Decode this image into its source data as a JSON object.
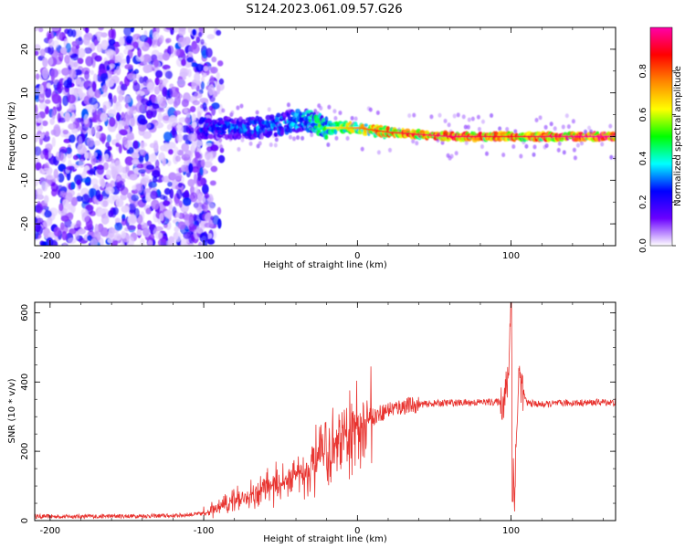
{
  "figure_title": "S124.2023.061.09.57.G26",
  "colors": {
    "axis": "#000000",
    "snr_line": "#e8332f",
    "background": "#ffffff"
  },
  "chart_data": [
    {
      "type": "heatmap",
      "title": "S124.2023.061.09.57.G26",
      "xlabel": "Height of straight line (km)",
      "ylabel": "Frequency (Hz)",
      "xlim": [
        -210,
        168
      ],
      "ylim": [
        -25,
        25
      ],
      "x_ticks": [
        -200,
        -100,
        0,
        100
      ],
      "y_ticks": [
        -20,
        -10,
        0,
        10,
        20
      ],
      "colorbar": {
        "label": "Normalized spectral amplitude",
        "range": [
          0,
          1
        ],
        "ticks": [
          "0.0",
          "0.2",
          "0.4",
          "0.6",
          "0.8"
        ],
        "colormap": [
          "#ffffff",
          "#6a00ff",
          "#0000ff",
          "#00ffff",
          "#00ff00",
          "#ffff00",
          "#ff8800",
          "#ff0000",
          "#ff00aa"
        ]
      },
      "description_points": [
        {
          "x": -150,
          "y": 0,
          "value": 0.15
        },
        {
          "x": -100,
          "y": 2,
          "value": 0.3
        },
        {
          "x": -60,
          "y": 2,
          "value": 0.35
        },
        {
          "x": -35,
          "y": 4,
          "value": 0.45
        },
        {
          "x": -20,
          "y": 2,
          "value": 0.55
        },
        {
          "x": 0,
          "y": 2,
          "value": 0.7
        },
        {
          "x": 20,
          "y": 1,
          "value": 0.85
        },
        {
          "x": 60,
          "y": 0,
          "value": 0.9
        },
        {
          "x": 100,
          "y": 0,
          "value": 0.85
        },
        {
          "x": 160,
          "y": 0,
          "value": 0.95
        }
      ]
    },
    {
      "type": "line",
      "title": "",
      "xlabel": "Height of straight line (km)",
      "ylabel": "SNR (10 * v/v)",
      "xlim": [
        -210,
        168
      ],
      "ylim": [
        0,
        630
      ],
      "x_ticks": [
        -200,
        -100,
        0,
        100
      ],
      "y_ticks": [
        0,
        200,
        400,
        600
      ],
      "x": [
        -210,
        -180,
        -150,
        -120,
        -100,
        -90,
        -80,
        -70,
        -60,
        -50,
        -40,
        -30,
        -20,
        -10,
        0,
        10,
        20,
        30,
        40,
        50,
        60,
        70,
        80,
        90,
        95,
        98,
        100,
        102,
        105,
        110,
        120,
        130,
        140,
        150,
        160,
        168
      ],
      "y": [
        12,
        12,
        13,
        14,
        20,
        35,
        55,
        75,
        95,
        110,
        130,
        160,
        190,
        230,
        270,
        300,
        320,
        330,
        335,
        338,
        340,
        340,
        342,
        342,
        345,
        400,
        630,
        55,
        420,
        340,
        335,
        338,
        340,
        340,
        342,
        340
      ]
    }
  ]
}
